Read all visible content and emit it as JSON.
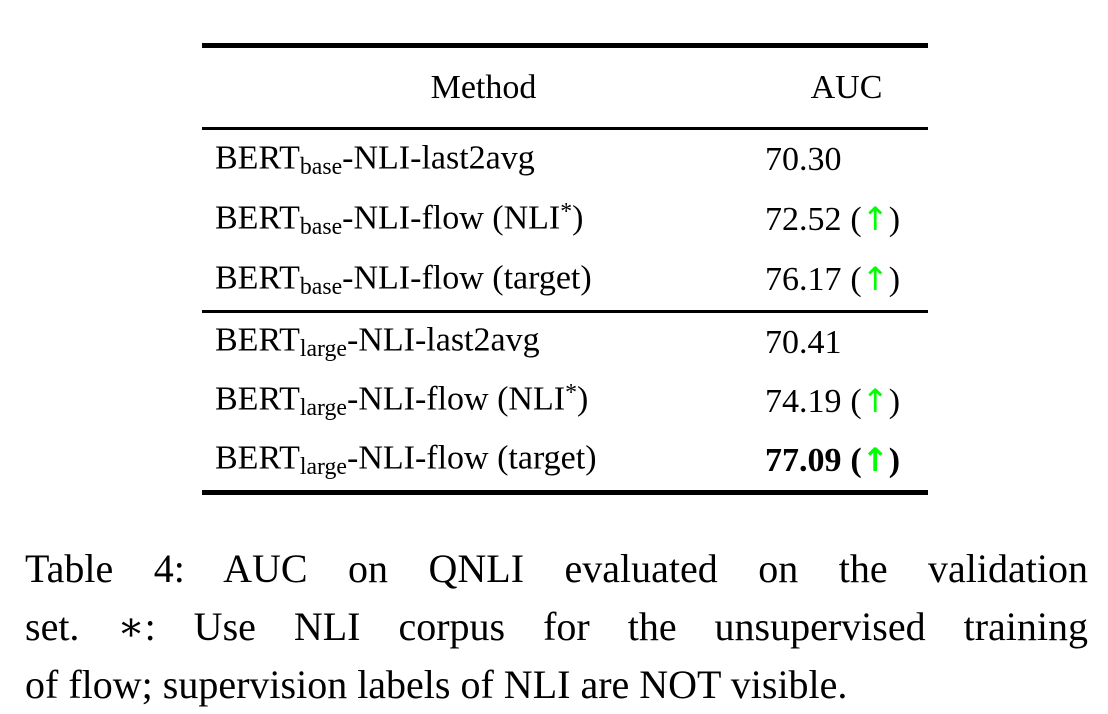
{
  "table": {
    "headers": {
      "method": "Method",
      "auc": "AUC"
    },
    "arrow_color": "#00ff00",
    "groups": [
      {
        "rows": [
          {
            "model": "BERT",
            "sub": "base",
            "rest": "-NLI-last2avg",
            "sup": "",
            "tail": "",
            "value": "70.30",
            "paren_open": "",
            "arrow": "",
            "paren_close": ""
          },
          {
            "model": "BERT",
            "sub": "base",
            "rest": "-NLI-flow (NLI",
            "sup": "*",
            "tail": ")",
            "value": "72.52",
            "paren_open": "(",
            "arrow": "↑",
            "paren_close": ")"
          },
          {
            "model": "BERT",
            "sub": "base",
            "rest": "-NLI-flow (target)",
            "sup": "",
            "tail": "",
            "value": "76.17",
            "paren_open": "(",
            "arrow": "↑",
            "paren_close": ")"
          }
        ]
      },
      {
        "rows": [
          {
            "model": "BERT",
            "sub": "large",
            "rest": "-NLI-last2avg",
            "sup": "",
            "tail": "",
            "value": "70.41",
            "paren_open": "",
            "arrow": "",
            "paren_close": ""
          },
          {
            "model": "BERT",
            "sub": "large",
            "rest": "-NLI-flow (NLI",
            "sup": "*",
            "tail": ")",
            "value": "74.19",
            "paren_open": "(",
            "arrow": "↑",
            "paren_close": ")"
          },
          {
            "model": "BERT",
            "sub": "large",
            "rest": "-NLI-flow (target)",
            "sup": "",
            "tail": "",
            "value": "77.09",
            "paren_open": "(",
            "arrow": "↑",
            "paren_close": ")"
          }
        ]
      }
    ]
  },
  "caption": {
    "lines": [
      "Table 4: AUC on QNLI evaluated on the validation",
      "set. ∗: Use NLI corpus for the unsupervised training",
      "of flow; supervision labels of NLI are NOT visible."
    ]
  }
}
